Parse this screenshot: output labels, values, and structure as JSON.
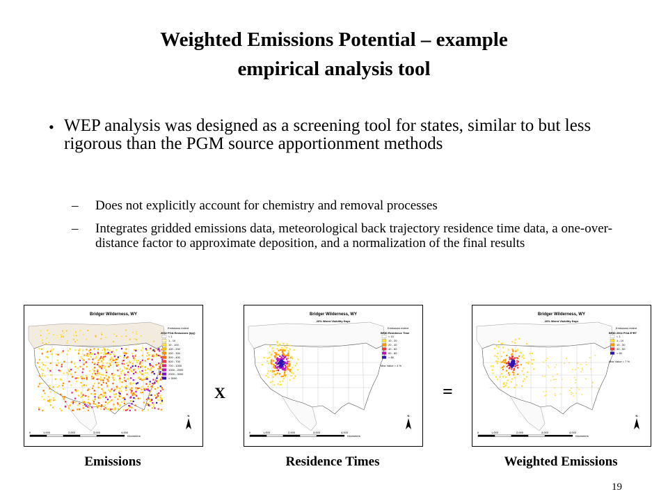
{
  "title": {
    "line1": "Weighted Emissions Potential – example",
    "line2": "empirical analysis tool"
  },
  "bullet": {
    "text": "WEP analysis was designed as a screening tool for states, similar to but less rigorous than the PGM source apportionment methods",
    "subitems": [
      "Does not explicitly account for chemistry and removal processes",
      "Integrates gridded emissions data, meteorological back trajectory residence time data, a one-over-distance factor to approximate deposition, and a normalization of the final results"
    ]
  },
  "maps": [
    {
      "map_title": "Bridger Wilderness, WY",
      "map_subtitle": "",
      "legend_header": "Emissions extent",
      "legend_title": "2002 POA Emissions (tpy)",
      "legend_items": [
        "< 1",
        "1 - 10",
        "10 - 100",
        "100 - 200",
        "200 - 300",
        "300 - 400",
        "500 - 700",
        "700 - 1000",
        "1000 - 2000",
        "2000 - 3000",
        "> 3000"
      ],
      "colors": [
        "#ffffff",
        "#fff7b0",
        "#ffe03a",
        "#ffc400",
        "#ff9a00",
        "#ff6a00",
        "#f03c3c",
        "#e0208a",
        "#c010c0",
        "#8010d0",
        "#3010b0"
      ],
      "max_note": "",
      "caption": "Emissions"
    },
    {
      "map_title": "Bridger Wilderness, WY",
      "map_subtitle": "20% Worst Visibility Days",
      "legend_header": "Emissions extent",
      "legend_title": "BRID Residence Time",
      "legend_items": [
        "< 10",
        "10 - 20",
        "20 - 40",
        "40 - 60",
        "60 - 80",
        "> 80"
      ],
      "colors": [
        "#ffffff",
        "#ffe03a",
        "#ff9a00",
        "#f03c3c",
        "#c010c0",
        "#3010b0"
      ],
      "max_note": "Max Value = 4 %",
      "caption": "Residence Times"
    },
    {
      "map_title": "Bridger Wilderness, WY",
      "map_subtitle": "20% Worst Visibility Days",
      "legend_header": "Emissions extent",
      "legend_title": "BRID 2002 POA E*RT",
      "legend_items": [
        "< 1",
        "1 - 10",
        "10 - 30",
        "30 - 50",
        "> 50"
      ],
      "colors": [
        "#ffffff",
        "#ffe03a",
        "#ff9a00",
        "#f03c3c",
        "#3010b0"
      ],
      "max_note": "Max Value = 7 %",
      "caption": "Weighted Emissions"
    }
  ],
  "scale": {
    "ticks": [
      "0",
      "1,000",
      "2,000",
      "3,000",
      "4,000"
    ],
    "unit": "Kilometers",
    "north": "N"
  },
  "operators": {
    "times": "X",
    "equals": "="
  },
  "page_number": "19"
}
